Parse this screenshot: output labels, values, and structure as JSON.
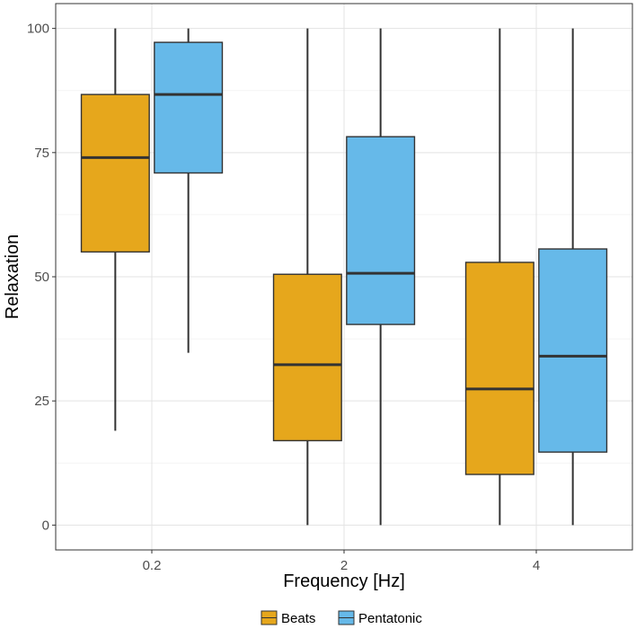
{
  "chart_data": {
    "type": "boxplot",
    "xlabel": "Frequency [Hz]",
    "ylabel": "Relaxation",
    "ylim": [
      -5,
      105
    ],
    "yticks": [
      0,
      25,
      50,
      75,
      100
    ],
    "ytick_labels": [
      "0",
      "25",
      "50",
      "75",
      "100"
    ],
    "categories": [
      "0.2",
      "2",
      "4"
    ],
    "grid": true,
    "legend_position": "bottom",
    "series": [
      {
        "name": "Beats",
        "color": "#E6A71C",
        "boxes": [
          {
            "category": "0.2",
            "min": 19,
            "q1": 55,
            "median": 74,
            "q3": 86.7,
            "max": 100
          },
          {
            "category": "2",
            "min": 0,
            "q1": 17,
            "median": 32.3,
            "q3": 50.5,
            "max": 100
          },
          {
            "category": "4",
            "min": 0,
            "q1": 10.2,
            "median": 27.4,
            "q3": 52.9,
            "max": 100
          }
        ]
      },
      {
        "name": "Pentatonic",
        "color": "#66B9E9",
        "boxes": [
          {
            "category": "0.2",
            "min": 34.7,
            "q1": 70.9,
            "median": 86.7,
            "q3": 97.2,
            "max": 100
          },
          {
            "category": "2",
            "min": 0,
            "q1": 40.4,
            "median": 50.7,
            "q3": 78.2,
            "max": 100
          },
          {
            "category": "4",
            "min": 0,
            "q1": 14.7,
            "median": 34,
            "q3": 55.6,
            "max": 100
          }
        ]
      }
    ]
  }
}
